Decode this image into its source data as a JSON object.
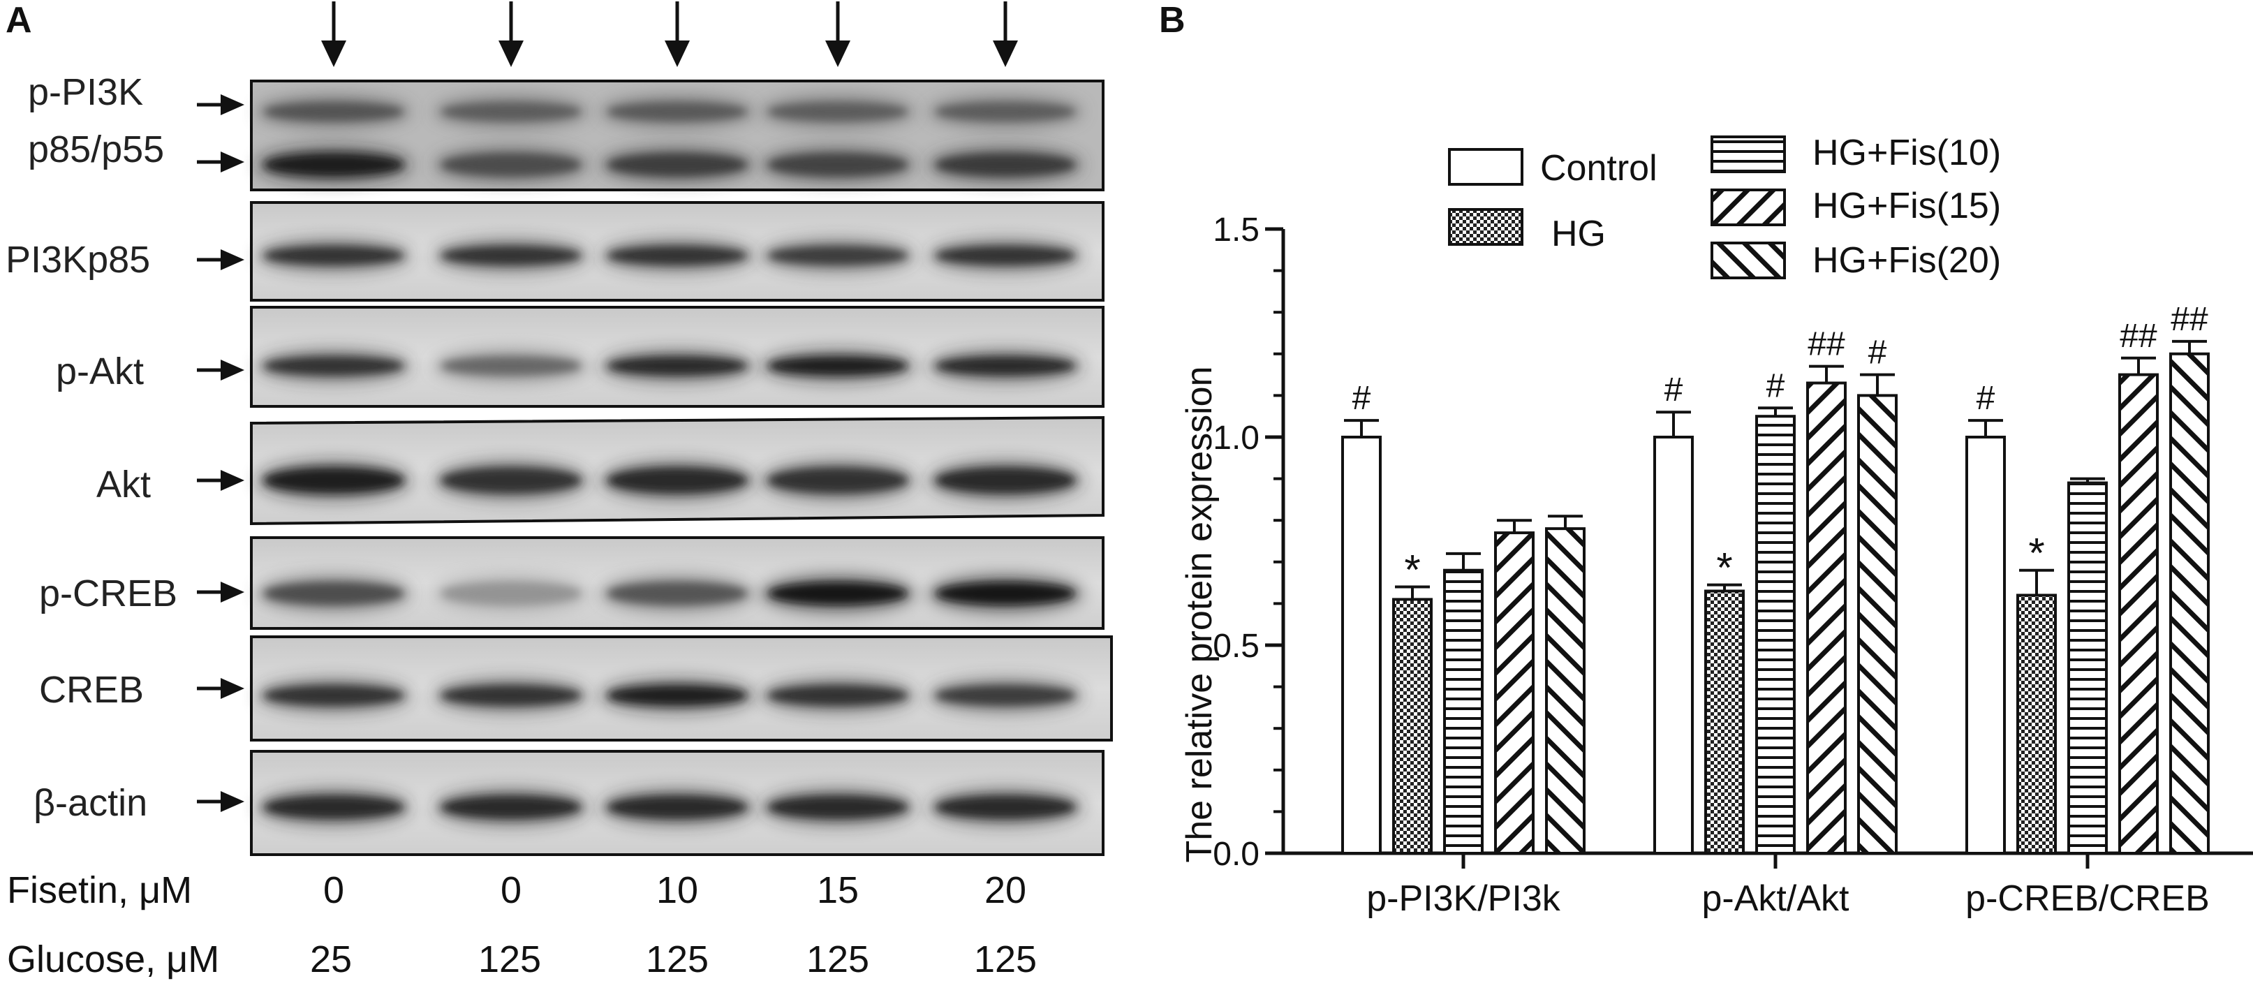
{
  "panels": {
    "a": "A",
    "b": "B"
  },
  "blot": {
    "labels": [
      "p-PI3K",
      "p85/p55",
      "PI3Kp85",
      "p-Akt",
      "Akt",
      "p-CREB",
      "CREB",
      "β-actin"
    ],
    "conditions": [
      {
        "label": "Fisetin, μM",
        "values": [
          "0",
          "0",
          "10",
          "15",
          "20"
        ]
      },
      {
        "label": "Glucose, μM",
        "values": [
          "25",
          "125",
          "125",
          "125",
          "125"
        ]
      }
    ]
  },
  "chart_data": {
    "type": "bar",
    "ylabel": "The relative protein expression",
    "xlabel": "",
    "ylim": [
      0,
      1.5
    ],
    "yticks": [
      "0.0",
      "0.5",
      "1.0",
      "1.5"
    ],
    "categories": [
      "p-PI3K/PI3k",
      "p-Akt/Akt",
      "p-CREB/CREB"
    ],
    "series": [
      {
        "name": "Control",
        "pattern": "open",
        "values": [
          1.0,
          1.0,
          1.0
        ],
        "errors": [
          0.04,
          0.06,
          0.04
        ],
        "annotations": [
          "#",
          "#",
          "#"
        ]
      },
      {
        "name": "HG",
        "pattern": "checker",
        "values": [
          0.61,
          0.63,
          0.62
        ],
        "errors": [
          0.03,
          0.015,
          0.06
        ],
        "annotations": [
          "*",
          "*",
          "*"
        ]
      },
      {
        "name": "HG+Fis(10)",
        "pattern": "hlines",
        "values": [
          0.68,
          1.05,
          0.89
        ],
        "errors": [
          0.04,
          0.02,
          0.01
        ],
        "annotations": [
          "",
          "#",
          ""
        ]
      },
      {
        "name": "HG+Fis(15)",
        "pattern": "fwdhatch",
        "values": [
          0.77,
          1.13,
          1.15
        ],
        "errors": [
          0.03,
          0.04,
          0.04
        ],
        "annotations": [
          "",
          "##",
          "##"
        ]
      },
      {
        "name": "HG+Fis(20)",
        "pattern": "backhatch",
        "values": [
          0.78,
          1.1,
          1.2
        ],
        "errors": [
          0.03,
          0.05,
          0.03
        ],
        "annotations": [
          "",
          "#",
          "##"
        ]
      }
    ],
    "legend_position": "top",
    "grid": false
  }
}
